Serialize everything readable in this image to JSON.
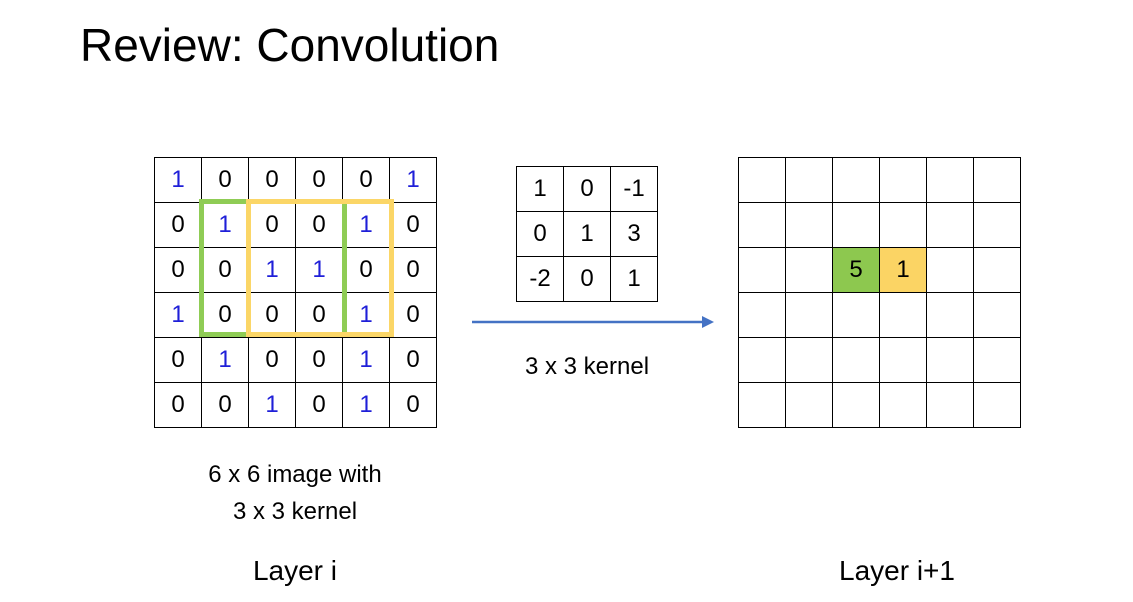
{
  "title": "Review: Convolution",
  "input_image": {
    "rows": [
      [
        "1",
        "0",
        "0",
        "0",
        "0",
        "1"
      ],
      [
        "0",
        "1",
        "0",
        "0",
        "1",
        "0"
      ],
      [
        "0",
        "0",
        "1",
        "1",
        "0",
        "0"
      ],
      [
        "1",
        "0",
        "0",
        "0",
        "1",
        "0"
      ],
      [
        "0",
        "1",
        "0",
        "0",
        "1",
        "0"
      ],
      [
        "0",
        "0",
        "1",
        "0",
        "1",
        "0"
      ]
    ],
    "caption_line1": "6 x 6 image with",
    "caption_line2": "3 x 3 kernel",
    "layer_label": "Layer i",
    "highlight_colors": {
      "green_window": "#8fcc55",
      "yellow_window": "#fbd667",
      "one_digit": "#1f1fd8"
    }
  },
  "kernel": {
    "rows": [
      [
        "1",
        "0",
        "-1"
      ],
      [
        "0",
        "1",
        "3"
      ],
      [
        "-2",
        "0",
        "1"
      ]
    ],
    "caption": "3 x 3 kernel"
  },
  "arrow_color": "#4472c4",
  "output": {
    "row_count": 6,
    "col_count": 6,
    "cells": [
      {
        "row": 2,
        "col": 2,
        "value": "5",
        "color": "green"
      },
      {
        "row": 2,
        "col": 3,
        "value": "1",
        "color": "yellow"
      }
    ],
    "layer_label": "Layer i+1"
  }
}
